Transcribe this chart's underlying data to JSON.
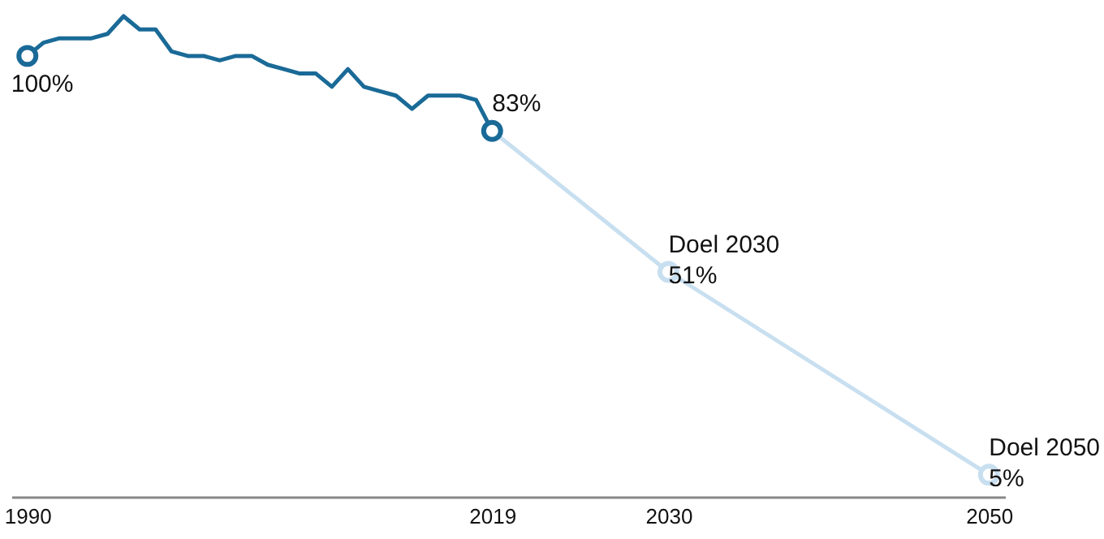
{
  "chart_data": {
    "type": "line",
    "xlim": [
      1989,
      2051
    ],
    "xticks": [
      1990,
      2019,
      2030,
      2050
    ],
    "tick_labels": "x",
    "grid": false,
    "legend": false,
    "annotations": [
      {
        "text": "Doel 2030",
        "x": 2030,
        "y": 51
      },
      {
        "text": "Doel 2050",
        "x": 2050,
        "y": 5
      }
    ],
    "series": [
      {
        "color": "#1a6a97",
        "x": [
          1990,
          1991,
          1992,
          1993,
          1994,
          1995,
          1996,
          1997,
          1998,
          1999,
          2000,
          2001,
          2002,
          2003,
          2004,
          2005,
          2006,
          2007,
          2008,
          2009,
          2010,
          2011,
          2012,
          2013,
          2014,
          2015,
          2016,
          2017,
          2018,
          2019
        ],
        "values": [
          100,
          103,
          104,
          104,
          104,
          105,
          109,
          106,
          106,
          101,
          100,
          100,
          99,
          100,
          100,
          98,
          97,
          96,
          96,
          93,
          97,
          93,
          92,
          91,
          88,
          91,
          91,
          91,
          90,
          83
        ],
        "value_labels": [
          "100%",
          null,
          null,
          null,
          null,
          null,
          null,
          null,
          null,
          null,
          null,
          null,
          null,
          null,
          null,
          null,
          null,
          null,
          null,
          null,
          null,
          null,
          null,
          null,
          null,
          null,
          null,
          null,
          null,
          "83%"
        ]
      },
      {
        "color": "#c8dff0",
        "x": [
          2019,
          2030,
          2050
        ],
        "values": [
          83,
          51,
          5
        ],
        "value_labels": [
          null,
          "51%",
          "5%"
        ]
      }
    ]
  }
}
